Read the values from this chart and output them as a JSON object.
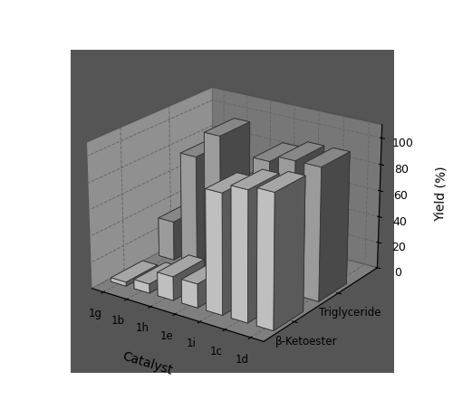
{
  "catalysts": [
    "1g",
    "1b",
    "1h",
    "1e",
    "1i",
    "1c",
    "1d"
  ],
  "triglyceride_values": [
    30,
    85,
    105,
    70,
    95,
    100,
    100
  ],
  "ketoester_values": [
    3,
    7,
    18,
    18,
    90,
    97,
    100
  ],
  "zlabel": "Yield (%)",
  "x_label": "Catalyst",
  "trig_label": "Triglyceride",
  "keto_label": "β-Ketoester",
  "zticks": [
    0,
    20,
    40,
    60,
    80,
    100
  ],
  "bar_color_trig": "#b0b0b0",
  "bar_color_keto": "#d8d8d8",
  "bar_edge_color": "#333333",
  "pane_left_color": "#999999",
  "pane_back_color": "#aaaaaa",
  "pane_floor_color": "#555555",
  "background_color": "#ffffff",
  "figsize": [
    5.0,
    4.64
  ],
  "dpi": 100,
  "elev": 22,
  "azim": -55,
  "bar_width": 0.65,
  "bar_depth": 0.65
}
